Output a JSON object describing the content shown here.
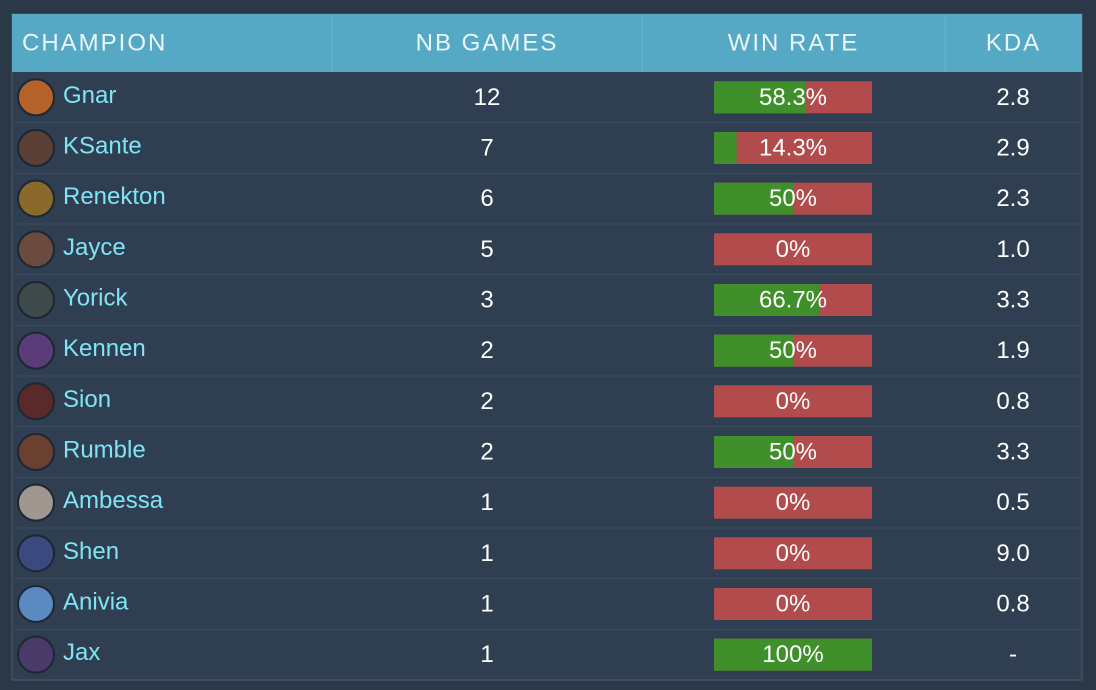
{
  "table": {
    "header": [
      "CHAMPION",
      "NB GAMES",
      "WIN RATE",
      "KDA"
    ],
    "rows": [
      {
        "champion": "Gnar",
        "games": 12,
        "win_rate": {
          "value": 58.3,
          "label": "58.3%"
        },
        "kda": "2.8"
      },
      {
        "champion": "KSante",
        "games": 7,
        "win_rate": {
          "value": 14.3,
          "label": "14.3%"
        },
        "kda": "2.9"
      },
      {
        "champion": "Renekton",
        "games": 6,
        "win_rate": {
          "value": 50,
          "label": "50%"
        },
        "kda": "2.3"
      },
      {
        "champion": "Jayce",
        "games": 5,
        "win_rate": {
          "value": 0,
          "label": "0%"
        },
        "kda": "1.0"
      },
      {
        "champion": "Yorick",
        "games": 3,
        "win_rate": {
          "value": 66.7,
          "label": "66.7%"
        },
        "kda": "3.3"
      },
      {
        "champion": "Kennen",
        "games": 2,
        "win_rate": {
          "value": 50,
          "label": "50%"
        },
        "kda": "1.9"
      },
      {
        "champion": "Sion",
        "games": 2,
        "win_rate": {
          "value": 0,
          "label": "0%"
        },
        "kda": "0.8"
      },
      {
        "champion": "Rumble",
        "games": 2,
        "win_rate": {
          "value": 50,
          "label": "50%"
        },
        "kda": "3.3"
      },
      {
        "champion": "Ambessa",
        "games": 1,
        "win_rate": {
          "value": 0,
          "label": "0%"
        },
        "kda": "0.5"
      },
      {
        "champion": "Shen",
        "games": 1,
        "win_rate": {
          "value": 0,
          "label": "0%"
        },
        "kda": "9.0"
      },
      {
        "champion": "Anivia",
        "games": 1,
        "win_rate": {
          "value": 0,
          "label": "0%"
        },
        "kda": "0.8"
      },
      {
        "champion": "Jax",
        "games": 1,
        "win_rate": {
          "value": 100,
          "label": "100%"
        },
        "kda": "-"
      }
    ]
  }
}
